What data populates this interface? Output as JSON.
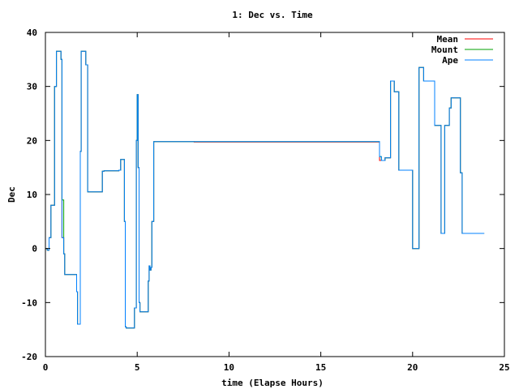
{
  "chart_data": {
    "type": "line",
    "title": "1: Dec vs. Time",
    "xlabel": "time (Elapse Hours)",
    "ylabel": "Dec",
    "xlim": [
      0,
      25
    ],
    "ylim": [
      -20,
      40
    ],
    "xticks": [
      0,
      5,
      10,
      15,
      20,
      25
    ],
    "yticks": [
      -20,
      -10,
      0,
      10,
      20,
      30,
      40
    ],
    "grid": false,
    "legend_position": "top-right",
    "series": [
      {
        "name": "Mean",
        "color": "#ff0000",
        "x": [
          0,
          0.1,
          0.2,
          0.3,
          0.4,
          0.5,
          0.6,
          0.7,
          0.85,
          0.9,
          1.0,
          1.05,
          1.6,
          1.7,
          1.75,
          1.8,
          1.9,
          1.95,
          2.0,
          2.1,
          2.2,
          2.3,
          2.35,
          2.4,
          3.0,
          3.1,
          3.2,
          3.9,
          4.0,
          4.1,
          4.2,
          4.3,
          4.35,
          4.4,
          4.6,
          4.8,
          4.85,
          4.95,
          5.0,
          5.05,
          5.1,
          5.15,
          5.2,
          5.5,
          5.6,
          5.65,
          5.7,
          5.75,
          5.8,
          5.9,
          6.0,
          8.1,
          8.1,
          18.1,
          18.2,
          18.3,
          18.5,
          18.6,
          18.8,
          18.9,
          19.0,
          19.25,
          19.3,
          19.35,
          19.5,
          19.8,
          20.0,
          20.05,
          20.1,
          20.3,
          20.35,
          20.5,
          20.6,
          20.7,
          20.8,
          21.1,
          21.2,
          21.3,
          21.5,
          21.55,
          21.65,
          21.75,
          21.8,
          21.9,
          22.0,
          22.1,
          22.3,
          22.5,
          22.6,
          22.7,
          22.75,
          23.0,
          23.1,
          23.9
        ],
        "y": [
          0,
          -0.3,
          2,
          8,
          8,
          30,
          36.5,
          36.5,
          35,
          2,
          -1,
          -4.8,
          -4.8,
          -8,
          -14,
          -14,
          18,
          36.5,
          36.5,
          36.5,
          34,
          10.5,
          10.5,
          10.5,
          10.5,
          14.3,
          14.4,
          14.4,
          14.5,
          16.5,
          16.5,
          5,
          -14.5,
          -14.7,
          -14.7,
          -14.7,
          -11,
          20,
          28.5,
          15,
          -10,
          -11.7,
          -11.7,
          -11.7,
          -6,
          -3.2,
          -4,
          -3.5,
          5,
          19.8,
          19.8,
          19.8,
          19.7,
          19.7,
          16.3,
          16.3,
          16.8,
          16.8,
          31,
          31,
          29,
          14.5,
          14.5,
          14.5,
          14.5,
          14.5,
          0,
          0,
          0,
          0,
          33.5,
          33.5,
          31,
          31,
          31,
          31,
          22.8,
          22.8,
          22.8,
          2.8,
          2.8,
          22.8,
          22.8,
          22.8,
          26,
          27.9,
          27.9,
          27.9,
          14,
          2.8,
          2.8,
          2.8,
          2.8,
          2.8
        ]
      },
      {
        "name": "Mount",
        "color": "#00a000",
        "x": [
          0,
          0.1,
          0.2,
          0.3,
          0.4,
          0.5,
          0.6,
          0.7,
          0.85,
          0.9,
          1.0,
          1.05,
          1.6,
          1.7,
          1.75,
          1.8,
          1.9,
          1.95,
          2.0,
          2.1,
          2.2,
          2.3,
          2.35,
          2.4,
          3.0,
          3.1,
          3.2,
          3.9,
          4.0,
          4.1,
          4.2,
          4.3,
          4.35,
          4.4,
          4.6,
          4.8,
          4.85,
          4.95,
          5.0,
          5.05,
          5.1,
          5.15,
          5.2,
          5.5,
          5.6,
          5.65,
          5.7,
          5.75,
          5.8,
          5.9,
          6.0,
          8.1,
          8.1,
          18.1,
          18.2,
          18.3,
          18.5,
          18.6,
          18.8,
          18.9,
          19.0,
          19.25,
          19.3,
          19.35,
          19.5,
          19.8,
          20.0,
          20.05,
          20.1,
          20.3,
          20.35,
          20.5,
          20.6,
          20.7,
          20.8,
          21.1,
          21.2,
          21.3,
          21.5,
          21.55,
          21.65,
          21.75,
          21.8,
          21.9,
          22.0,
          22.1,
          22.3,
          22.5,
          22.6,
          22.7,
          22.75,
          23.0,
          23.1,
          23.9
        ],
        "y": [
          0,
          -0.3,
          2,
          8,
          8,
          30,
          36.5,
          36.5,
          35,
          9,
          -1,
          -4.8,
          -4.8,
          -8,
          -14,
          -14,
          18,
          36.5,
          36.5,
          36.5,
          34,
          10.5,
          10.5,
          10.5,
          10.5,
          14.3,
          14.4,
          14.4,
          14.5,
          16.5,
          16.5,
          5,
          -14.5,
          -14.7,
          -14.7,
          -14.7,
          -11,
          20,
          28.5,
          15,
          -10,
          -11.7,
          -11.7,
          -11.7,
          -6,
          -3.2,
          -4,
          -3.5,
          5,
          19.8,
          19.8,
          19.8,
          19.8,
          19.8,
          17,
          16.3,
          16.8,
          16.8,
          31,
          31,
          29,
          14.5,
          14.5,
          14.5,
          14.5,
          14.5,
          0,
          0,
          0,
          0,
          33.5,
          33.5,
          31,
          31,
          31,
          31,
          22.8,
          22.8,
          22.8,
          2.8,
          2.8,
          22.8,
          22.8,
          22.8,
          26,
          27.9,
          27.9,
          27.9,
          14,
          2.8,
          2.8,
          2.8,
          2.8,
          2.8
        ]
      },
      {
        "name": "Ape",
        "color": "#0080ff",
        "x": [
          0,
          0.1,
          0.2,
          0.3,
          0.4,
          0.5,
          0.6,
          0.7,
          0.85,
          0.9,
          1.0,
          1.05,
          1.6,
          1.7,
          1.75,
          1.8,
          1.9,
          1.95,
          2.0,
          2.1,
          2.2,
          2.3,
          2.35,
          2.4,
          3.0,
          3.1,
          3.2,
          3.9,
          4.0,
          4.1,
          4.2,
          4.3,
          4.35,
          4.4,
          4.6,
          4.8,
          4.85,
          4.95,
          5.0,
          5.05,
          5.1,
          5.15,
          5.2,
          5.5,
          5.6,
          5.65,
          5.7,
          5.75,
          5.8,
          5.9,
          6.0,
          8.1,
          8.1,
          18.1,
          18.2,
          18.3,
          18.5,
          18.6,
          18.8,
          18.9,
          19.0,
          19.25,
          19.3,
          19.35,
          19.5,
          19.8,
          20.0,
          20.05,
          20.1,
          20.3,
          20.35,
          20.5,
          20.6,
          20.7,
          20.8,
          21.1,
          21.2,
          21.3,
          21.5,
          21.55,
          21.65,
          21.75,
          21.8,
          21.9,
          22.0,
          22.1,
          22.3,
          22.5,
          22.6,
          22.7,
          22.75,
          23.0,
          23.1,
          23.9
        ],
        "y": [
          0,
          -0.3,
          2,
          8,
          8,
          30,
          36.5,
          36.5,
          35,
          2,
          -1,
          -4.8,
          -4.8,
          -8,
          -14,
          -14,
          18,
          36.5,
          36.5,
          36.5,
          34,
          10.5,
          10.5,
          10.5,
          10.5,
          14.3,
          14.4,
          14.4,
          14.5,
          16.5,
          16.5,
          5,
          -14.5,
          -14.7,
          -14.7,
          -14.7,
          -11,
          20,
          28.5,
          15,
          -10,
          -11.7,
          -11.7,
          -11.7,
          -6,
          -3.2,
          -4,
          -3.5,
          5,
          19.8,
          19.8,
          19.8,
          19.8,
          19.8,
          17,
          16.3,
          16.8,
          16.8,
          31,
          31,
          29,
          14.5,
          14.5,
          14.5,
          14.5,
          14.5,
          0,
          0,
          0,
          0,
          33.5,
          33.5,
          31,
          31,
          31,
          31,
          22.8,
          22.8,
          22.8,
          2.8,
          2.8,
          22.8,
          22.8,
          22.8,
          26,
          27.9,
          27.9,
          27.9,
          14,
          2.8,
          2.8,
          2.8,
          2.8,
          2.8
        ]
      }
    ]
  }
}
